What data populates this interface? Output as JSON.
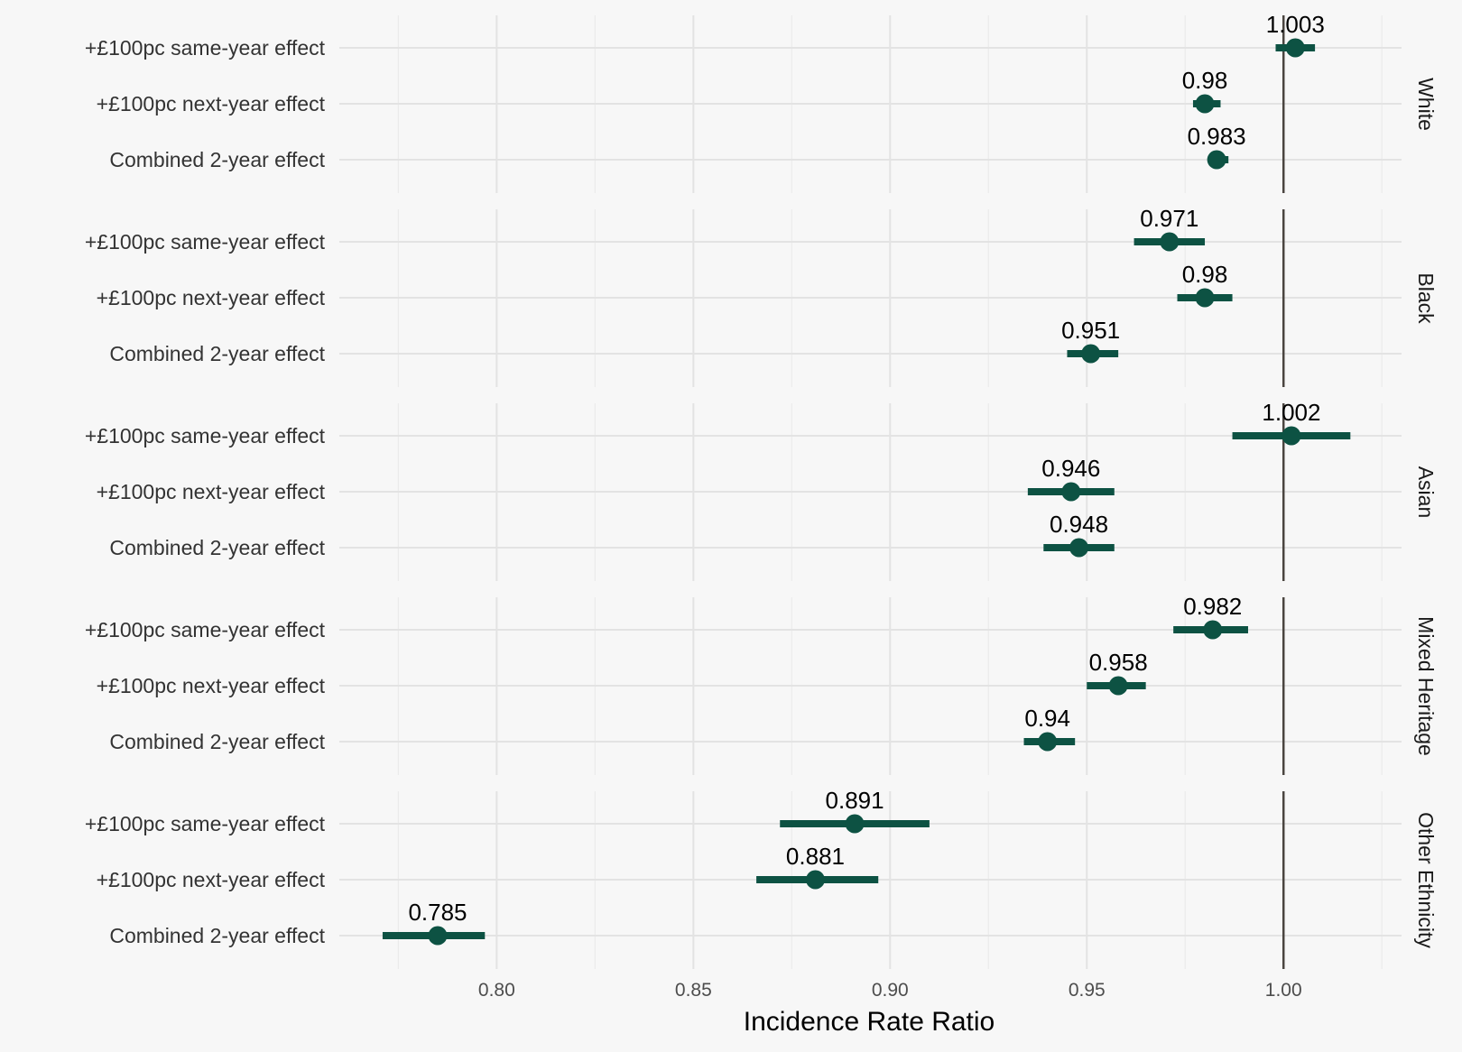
{
  "chart_data": {
    "type": "forest",
    "xlabel": "Incidence Rate Ratio",
    "xlim": [
      0.76,
      1.03
    ],
    "x_ticks": [
      "0.80",
      "0.85",
      "0.90",
      "0.95",
      "1.00"
    ],
    "reference_line": 1.0,
    "grid": true,
    "color": "#0d5243",
    "reference_color": "#4a4540",
    "row_labels": [
      "+£100pc same-year effect",
      "+£100pc next-year effect",
      "Combined 2-year effect"
    ],
    "panels": [
      {
        "name": "White",
        "rows": [
          {
            "label": "+£100pc same-year effect",
            "estimate": 1.003,
            "lower": 0.998,
            "upper": 1.008,
            "text": "1.003"
          },
          {
            "label": "+£100pc next-year effect",
            "estimate": 0.98,
            "lower": 0.977,
            "upper": 0.984,
            "text": "0.98"
          },
          {
            "label": "Combined 2-year effect",
            "estimate": 0.983,
            "lower": 0.981,
            "upper": 0.986,
            "text": "0.983"
          }
        ]
      },
      {
        "name": "Black",
        "rows": [
          {
            "label": "+£100pc same-year effect",
            "estimate": 0.971,
            "lower": 0.962,
            "upper": 0.98,
            "text": "0.971"
          },
          {
            "label": "+£100pc next-year effect",
            "estimate": 0.98,
            "lower": 0.973,
            "upper": 0.987,
            "text": "0.98"
          },
          {
            "label": "Combined 2-year effect",
            "estimate": 0.951,
            "lower": 0.945,
            "upper": 0.958,
            "text": "0.951"
          }
        ]
      },
      {
        "name": "Asian",
        "rows": [
          {
            "label": "+£100pc same-year effect",
            "estimate": 1.002,
            "lower": 0.987,
            "upper": 1.017,
            "text": "1.002"
          },
          {
            "label": "+£100pc next-year effect",
            "estimate": 0.946,
            "lower": 0.935,
            "upper": 0.957,
            "text": "0.946"
          },
          {
            "label": "Combined 2-year effect",
            "estimate": 0.948,
            "lower": 0.939,
            "upper": 0.957,
            "text": "0.948"
          }
        ]
      },
      {
        "name": "Mixed Heritage",
        "rows": [
          {
            "label": "+£100pc same-year effect",
            "estimate": 0.982,
            "lower": 0.972,
            "upper": 0.991,
            "text": "0.982"
          },
          {
            "label": "+£100pc next-year effect",
            "estimate": 0.958,
            "lower": 0.95,
            "upper": 0.965,
            "text": "0.958"
          },
          {
            "label": "Combined 2-year effect",
            "estimate": 0.94,
            "lower": 0.934,
            "upper": 0.947,
            "text": "0.94"
          }
        ]
      },
      {
        "name": "Other Ethnicity",
        "rows": [
          {
            "label": "+£100pc same-year effect",
            "estimate": 0.891,
            "lower": 0.872,
            "upper": 0.91,
            "text": "0.891"
          },
          {
            "label": "+£100pc next-year effect",
            "estimate": 0.881,
            "lower": 0.866,
            "upper": 0.897,
            "text": "0.881"
          },
          {
            "label": "Combined 2-year effect",
            "estimate": 0.785,
            "lower": 0.771,
            "upper": 0.797,
            "text": "0.785"
          }
        ]
      }
    ]
  }
}
